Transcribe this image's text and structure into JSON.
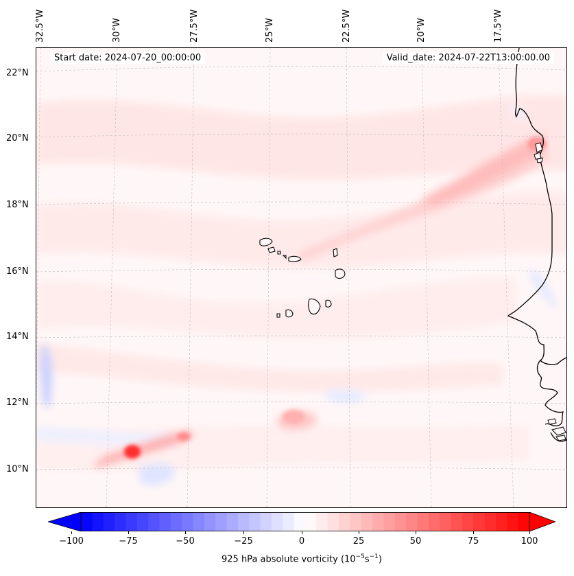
{
  "header": {
    "start_date": "Start date: 2024-07-20_00:00:00",
    "valid_date": "Valid_date: 2024-07-22T13:00:00.00"
  },
  "axes": {
    "lon_labels": [
      "32.5°W",
      "30°W",
      "27.5°W",
      "25°W",
      "22.5°W",
      "20°W",
      "17.5°W"
    ],
    "lat_labels": [
      "22°N",
      "20°N",
      "18°N",
      "16°N",
      "14°N",
      "12°N",
      "10°N"
    ]
  },
  "colorbar": {
    "title": "925 hPa absolute vorticity (10",
    "title_exp": "−5",
    "title_unit": "s",
    "title_unit_exp": "−1",
    "title_close": ")",
    "ticks": [
      "−100",
      "−75",
      "−50",
      "−25",
      "0",
      "25",
      "50",
      "75",
      "100"
    ],
    "range": [
      -100,
      100
    ],
    "colormap": "bwr",
    "extend": "both"
  },
  "colors": {
    "min": "#0000ff",
    "mid": "#ffffff",
    "max": "#ff0000",
    "coastline": "#000000",
    "gridline": "#bbbbbb"
  }
}
